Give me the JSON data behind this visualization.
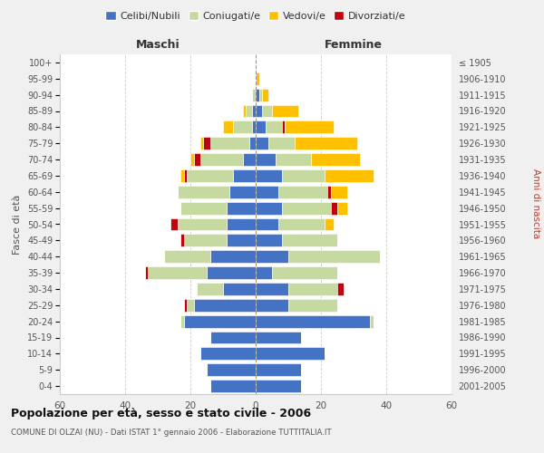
{
  "age_groups": [
    "0-4",
    "5-9",
    "10-14",
    "15-19",
    "20-24",
    "25-29",
    "30-34",
    "35-39",
    "40-44",
    "45-49",
    "50-54",
    "55-59",
    "60-64",
    "65-69",
    "70-74",
    "75-79",
    "80-84",
    "85-89",
    "90-94",
    "95-99",
    "100+"
  ],
  "birth_years": [
    "2001-2005",
    "1996-2000",
    "1991-1995",
    "1986-1990",
    "1981-1985",
    "1976-1980",
    "1971-1975",
    "1966-1970",
    "1961-1965",
    "1956-1960",
    "1951-1955",
    "1946-1950",
    "1941-1945",
    "1936-1940",
    "1931-1935",
    "1926-1930",
    "1921-1925",
    "1916-1920",
    "1911-1915",
    "1906-1910",
    "≤ 1905"
  ],
  "male": {
    "celibi": [
      14,
      15,
      17,
      14,
      22,
      19,
      10,
      15,
      14,
      9,
      9,
      9,
      8,
      7,
      4,
      2,
      1,
      1,
      0,
      0,
      0
    ],
    "coniugati": [
      0,
      0,
      0,
      0,
      1,
      2,
      8,
      18,
      14,
      13,
      15,
      14,
      16,
      14,
      13,
      12,
      6,
      2,
      1,
      0,
      0
    ],
    "vedovi": [
      0,
      0,
      0,
      0,
      0,
      0,
      0,
      0,
      0,
      0,
      0,
      0,
      0,
      1,
      1,
      1,
      3,
      1,
      0,
      0,
      0
    ],
    "divorziati": [
      0,
      0,
      0,
      0,
      0,
      1,
      0,
      1,
      0,
      1,
      2,
      0,
      0,
      1,
      2,
      2,
      0,
      0,
      0,
      0,
      0
    ]
  },
  "female": {
    "nubili": [
      14,
      14,
      21,
      14,
      35,
      10,
      10,
      5,
      10,
      8,
      7,
      8,
      7,
      8,
      6,
      4,
      3,
      2,
      1,
      0,
      0
    ],
    "coniugate": [
      0,
      0,
      0,
      0,
      1,
      15,
      15,
      20,
      28,
      17,
      14,
      15,
      15,
      13,
      11,
      8,
      5,
      3,
      1,
      0,
      0
    ],
    "vedove": [
      0,
      0,
      0,
      0,
      0,
      0,
      0,
      0,
      0,
      0,
      3,
      3,
      5,
      15,
      15,
      19,
      15,
      8,
      2,
      1,
      0
    ],
    "divorziate": [
      0,
      0,
      0,
      0,
      0,
      0,
      2,
      0,
      0,
      0,
      0,
      2,
      1,
      0,
      0,
      0,
      1,
      0,
      0,
      0,
      0
    ]
  },
  "colors": {
    "celibi": "#4472c4",
    "coniugati": "#c5d9a0",
    "vedovi": "#ffc000",
    "divorziati": "#c0000b"
  },
  "xlim": 60,
  "title": "Popolazione per età, sesso e stato civile - 2006",
  "subtitle": "COMUNE DI OLZAI (NU) - Dati ISTAT 1° gennaio 2006 - Elaborazione TUTTITALIA.IT",
  "ylabel_left": "Fasce di età",
  "ylabel_right": "Anni di nascita",
  "xlabel_left": "Maschi",
  "xlabel_right": "Femmine",
  "legend_labels": [
    "Celibi/Nubili",
    "Coniugati/e",
    "Vedovi/e",
    "Divorziati/e"
  ],
  "bg_color": "#f0f0f0",
  "plot_bg": "#ffffff"
}
